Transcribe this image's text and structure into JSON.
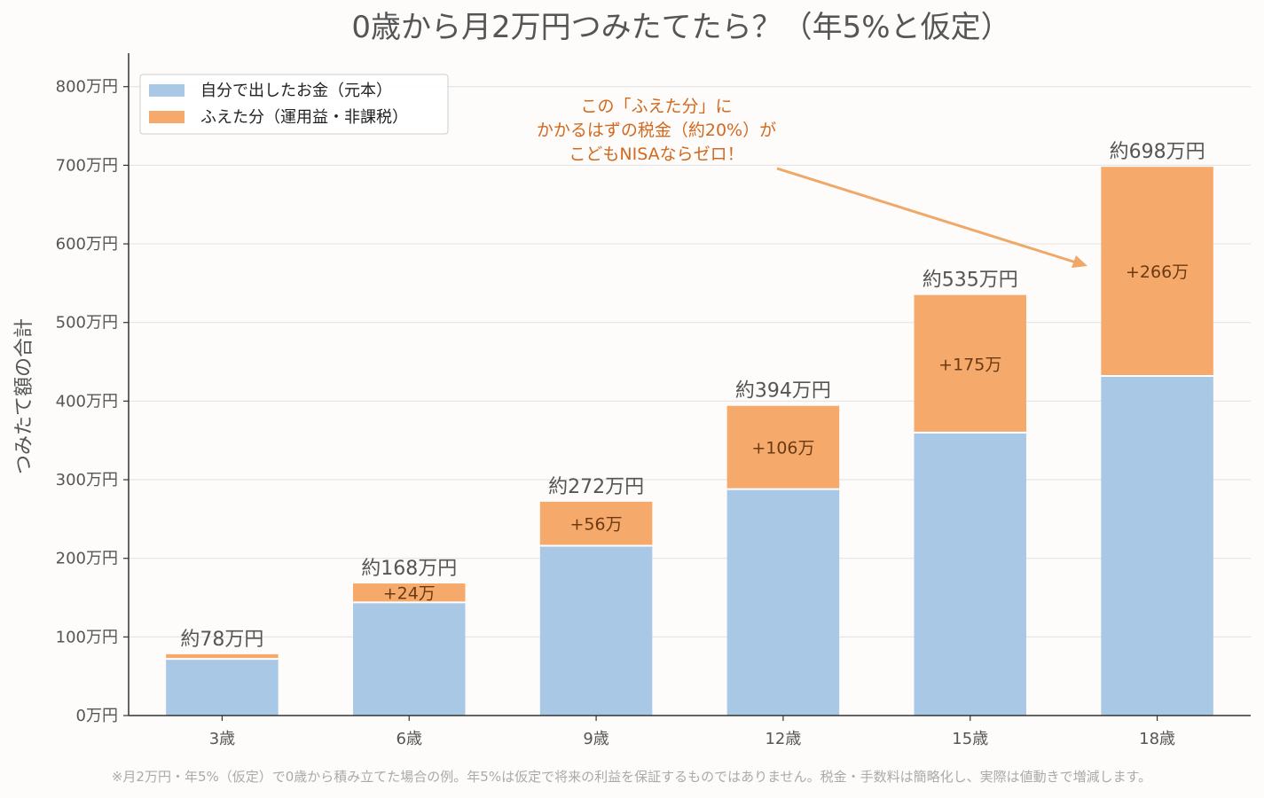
{
  "chart_data": {
    "type": "bar",
    "stacked": true,
    "title": "0歳から月2万円つみたてたら？（年5%と仮定）",
    "xlabel": "",
    "ylabel": "つみたて額の合計",
    "categories": [
      "3歳",
      "6歳",
      "9歳",
      "12歳",
      "15歳",
      "18歳"
    ],
    "series": [
      {
        "name": "自分で出したお金（元本）",
        "values": [
          72,
          144,
          216,
          288,
          360,
          432
        ],
        "color": "#a8c8e6"
      },
      {
        "name": "ふえた分（運用益・非課税）",
        "values": [
          6,
          24,
          56,
          106,
          175,
          266
        ],
        "color": "#f5aa6b"
      }
    ],
    "total_labels": [
      "約78万円",
      "約168万円",
      "約272万円",
      "約394万円",
      "約535万円",
      "約698万円"
    ],
    "gain_labels": [
      "",
      "+24万",
      "+56万",
      "+106万",
      "+175万",
      "+266万"
    ],
    "yticks": [
      0,
      100,
      200,
      300,
      400,
      500,
      600,
      700,
      800
    ],
    "ytick_labels": [
      "0万円",
      "100万円",
      "200万円",
      "300万円",
      "400万円",
      "500万円",
      "600万円",
      "700万円",
      "800万円"
    ],
    "ylim": [
      0,
      820
    ],
    "grid": true,
    "legend_position": "top-left",
    "annotation": {
      "lines": [
        "この「ふえた分」に",
        "かかるはずの税金（約20%）が",
        "こどもNISAならゼロ！"
      ],
      "color": "#d2691e",
      "arrow_color": "#f0a868",
      "points_to": "18歳"
    },
    "footnote": "※月2万円・年5%（仮定）で0歳から積み立てた場合の例。年5%は仮定で将来の利益を保証するものではありません。税金・手数料は簡略化し、実際は値動きで増減します。"
  }
}
